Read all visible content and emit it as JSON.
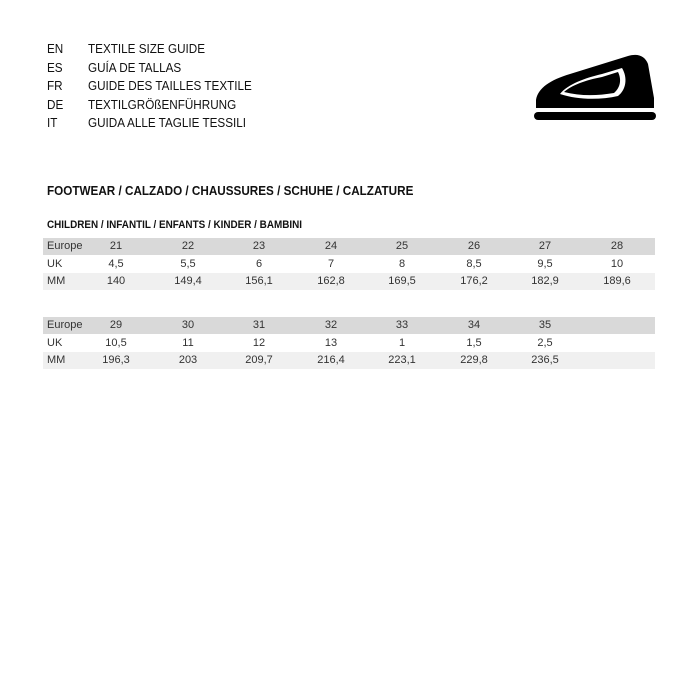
{
  "languages": [
    {
      "code": "EN",
      "text": "TEXTILE SIZE GUIDE"
    },
    {
      "code": "ES",
      "text": "GUÍA DE TALLAS"
    },
    {
      "code": "FR",
      "text": "GUIDE DES TAILLES TEXTILE"
    },
    {
      "code": "DE",
      "text": "TEXTILGRÖßENFÜHRUNG"
    },
    {
      "code": "IT",
      "text": "GUIDA ALLE TAGLIE TESSILI"
    }
  ],
  "section_title": "FOOTWEAR / CALZADO / CHAUSSURES / SCHUHE / CALZATURE",
  "subsection_title": "CHILDREN / INFANTIL / ENFANTS / KINDER / BAMBINI",
  "tables": [
    {
      "rows": [
        {
          "label": "Europe",
          "cells": [
            "21",
            "22",
            "23",
            "24",
            "25",
            "26",
            "27",
            "28"
          ]
        },
        {
          "label": "UK",
          "cells": [
            "4,5",
            "5,5",
            "6",
            "7",
            "8",
            "8,5",
            "9,5",
            "10"
          ]
        },
        {
          "label": "MM",
          "cells": [
            "140",
            "149,4",
            "156,1",
            "162,8",
            "169,5",
            "176,2",
            "182,9",
            "189,6"
          ]
        }
      ]
    },
    {
      "rows": [
        {
          "label": "Europe",
          "cells": [
            "29",
            "30",
            "31",
            "32",
            "33",
            "34",
            "35"
          ]
        },
        {
          "label": "UK",
          "cells": [
            "10,5",
            "11",
            "12",
            "13",
            "1",
            "1,5",
            "2,5"
          ]
        },
        {
          "label": "MM",
          "cells": [
            "196,3",
            "203",
            "209,7",
            "216,4",
            "223,1",
            "229,8",
            "236,5"
          ]
        }
      ]
    }
  ]
}
